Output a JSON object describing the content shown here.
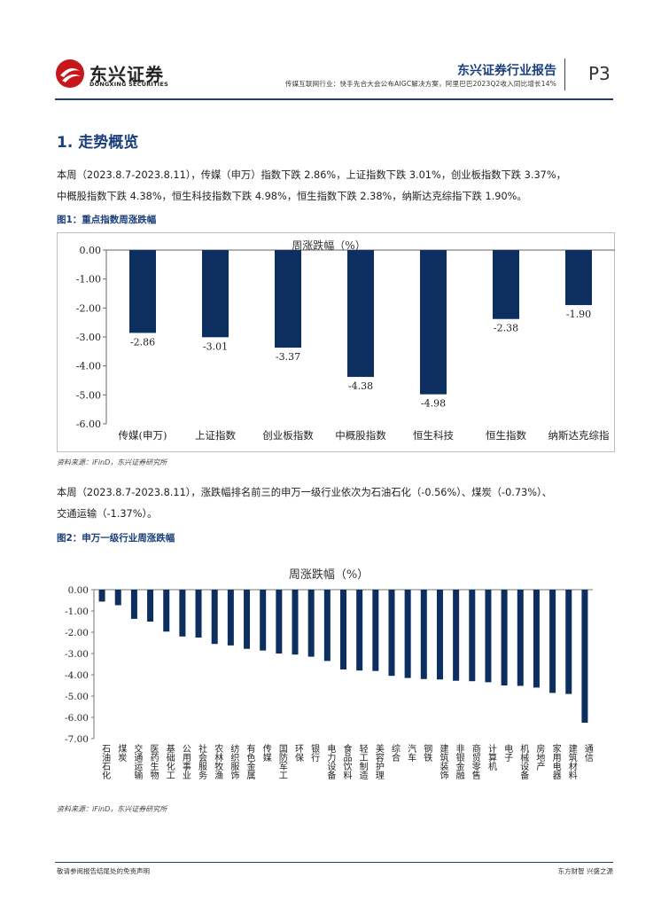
{
  "header": {
    "logo_cn": "东兴证券",
    "logo_en": "DONGXING SECURITIES",
    "report_type": "东兴证券行业报告",
    "subtitle": "传媒互联网行业：快手先合大会公布AIGC解决方案，阿里巴巴2023Q2收入同比增长14%",
    "page": "P3"
  },
  "section": {
    "title": "1. 走势概览"
  },
  "para1": {
    "line1": "本周（2023.8.7-2023.8.11），传媒（申万）指数下跌 2.86%，上证指数下跌 3.01%，创业板指数下跌 3.37%，",
    "line2": "中概股指数下跌 4.38%，恒生科技指数下跌 4.98%，恒生指数下跌 2.38%，纳斯达克综指下跌 1.90%。"
  },
  "figure1": {
    "label": "图1：重点指数周涨跌幅",
    "source": "资料来源：iFinD，东兴证券研究所"
  },
  "para2": {
    "line1": "本周（2023.8.7-2023.8.11），涨跌幅排名前三的申万一级行业依次为石油石化（-0.56%）、煤炭（-0.73%）、",
    "line2": "交通运输（-1.37%）。"
  },
  "figure2": {
    "label": "图2：申万一级行业周涨跌幅",
    "source": "资料来源：iFinD，东兴证券研究所"
  },
  "footer": {
    "left": "敬请参阅报告结尾处的免责声明",
    "right": "东方财智 兴盛之源"
  },
  "colors": {
    "bar": "#0c2f5f",
    "accent": "#1a3f7a",
    "logo_red": "#c8161d"
  },
  "chart_data": [
    {
      "type": "bar",
      "title": "周涨跌幅（%）",
      "categories": [
        "传媒(申万)",
        "上证指数",
        "创业板指数",
        "中概股指数",
        "恒生科技",
        "恒生指数",
        "纳斯达克综指"
      ],
      "values": [
        -2.86,
        -3.01,
        -3.37,
        -4.38,
        -4.98,
        -2.38,
        -1.9
      ],
      "ylim": [
        -6.0,
        0.0
      ],
      "yticks": [
        "0.00",
        "-1.00",
        "-2.00",
        "-3.00",
        "-4.00",
        "-5.00",
        "-6.00"
      ],
      "xlabel": "",
      "ylabel": ""
    },
    {
      "type": "bar",
      "title": "周涨跌幅（%）",
      "categories": [
        "石油石化",
        "煤炭",
        "交通运输",
        "医药生物",
        "基础化工",
        "公用事业",
        "社会服务",
        "农林牧渔",
        "纺织服饰",
        "有色金属",
        "传媒",
        "国防军工",
        "环保",
        "银行",
        "电力设备",
        "食品饮料",
        "轻工制造",
        "美容护理",
        "综合",
        "汽车",
        "钢铁",
        "建筑装饰",
        "非银金融",
        "商贸零售",
        "计算机",
        "电子",
        "机械设备",
        "房地产",
        "家用电器",
        "建筑材料",
        "通信"
      ],
      "values": [
        -0.56,
        -0.73,
        -1.37,
        -1.5,
        -1.97,
        -2.2,
        -2.25,
        -2.55,
        -2.62,
        -2.78,
        -2.86,
        -3.0,
        -3.05,
        -3.15,
        -3.35,
        -3.75,
        -3.8,
        -3.82,
        -4.05,
        -4.15,
        -4.2,
        -4.22,
        -4.28,
        -4.3,
        -4.35,
        -4.5,
        -4.52,
        -4.6,
        -4.85,
        -4.9,
        -6.25
      ],
      "ylim": [
        -7.0,
        0.0
      ],
      "yticks": [
        "0.00",
        "-1.00",
        "-2.00",
        "-3.00",
        "-4.00",
        "-5.00",
        "-6.00",
        "-7.00"
      ],
      "xlabel": "",
      "ylabel": ""
    }
  ]
}
